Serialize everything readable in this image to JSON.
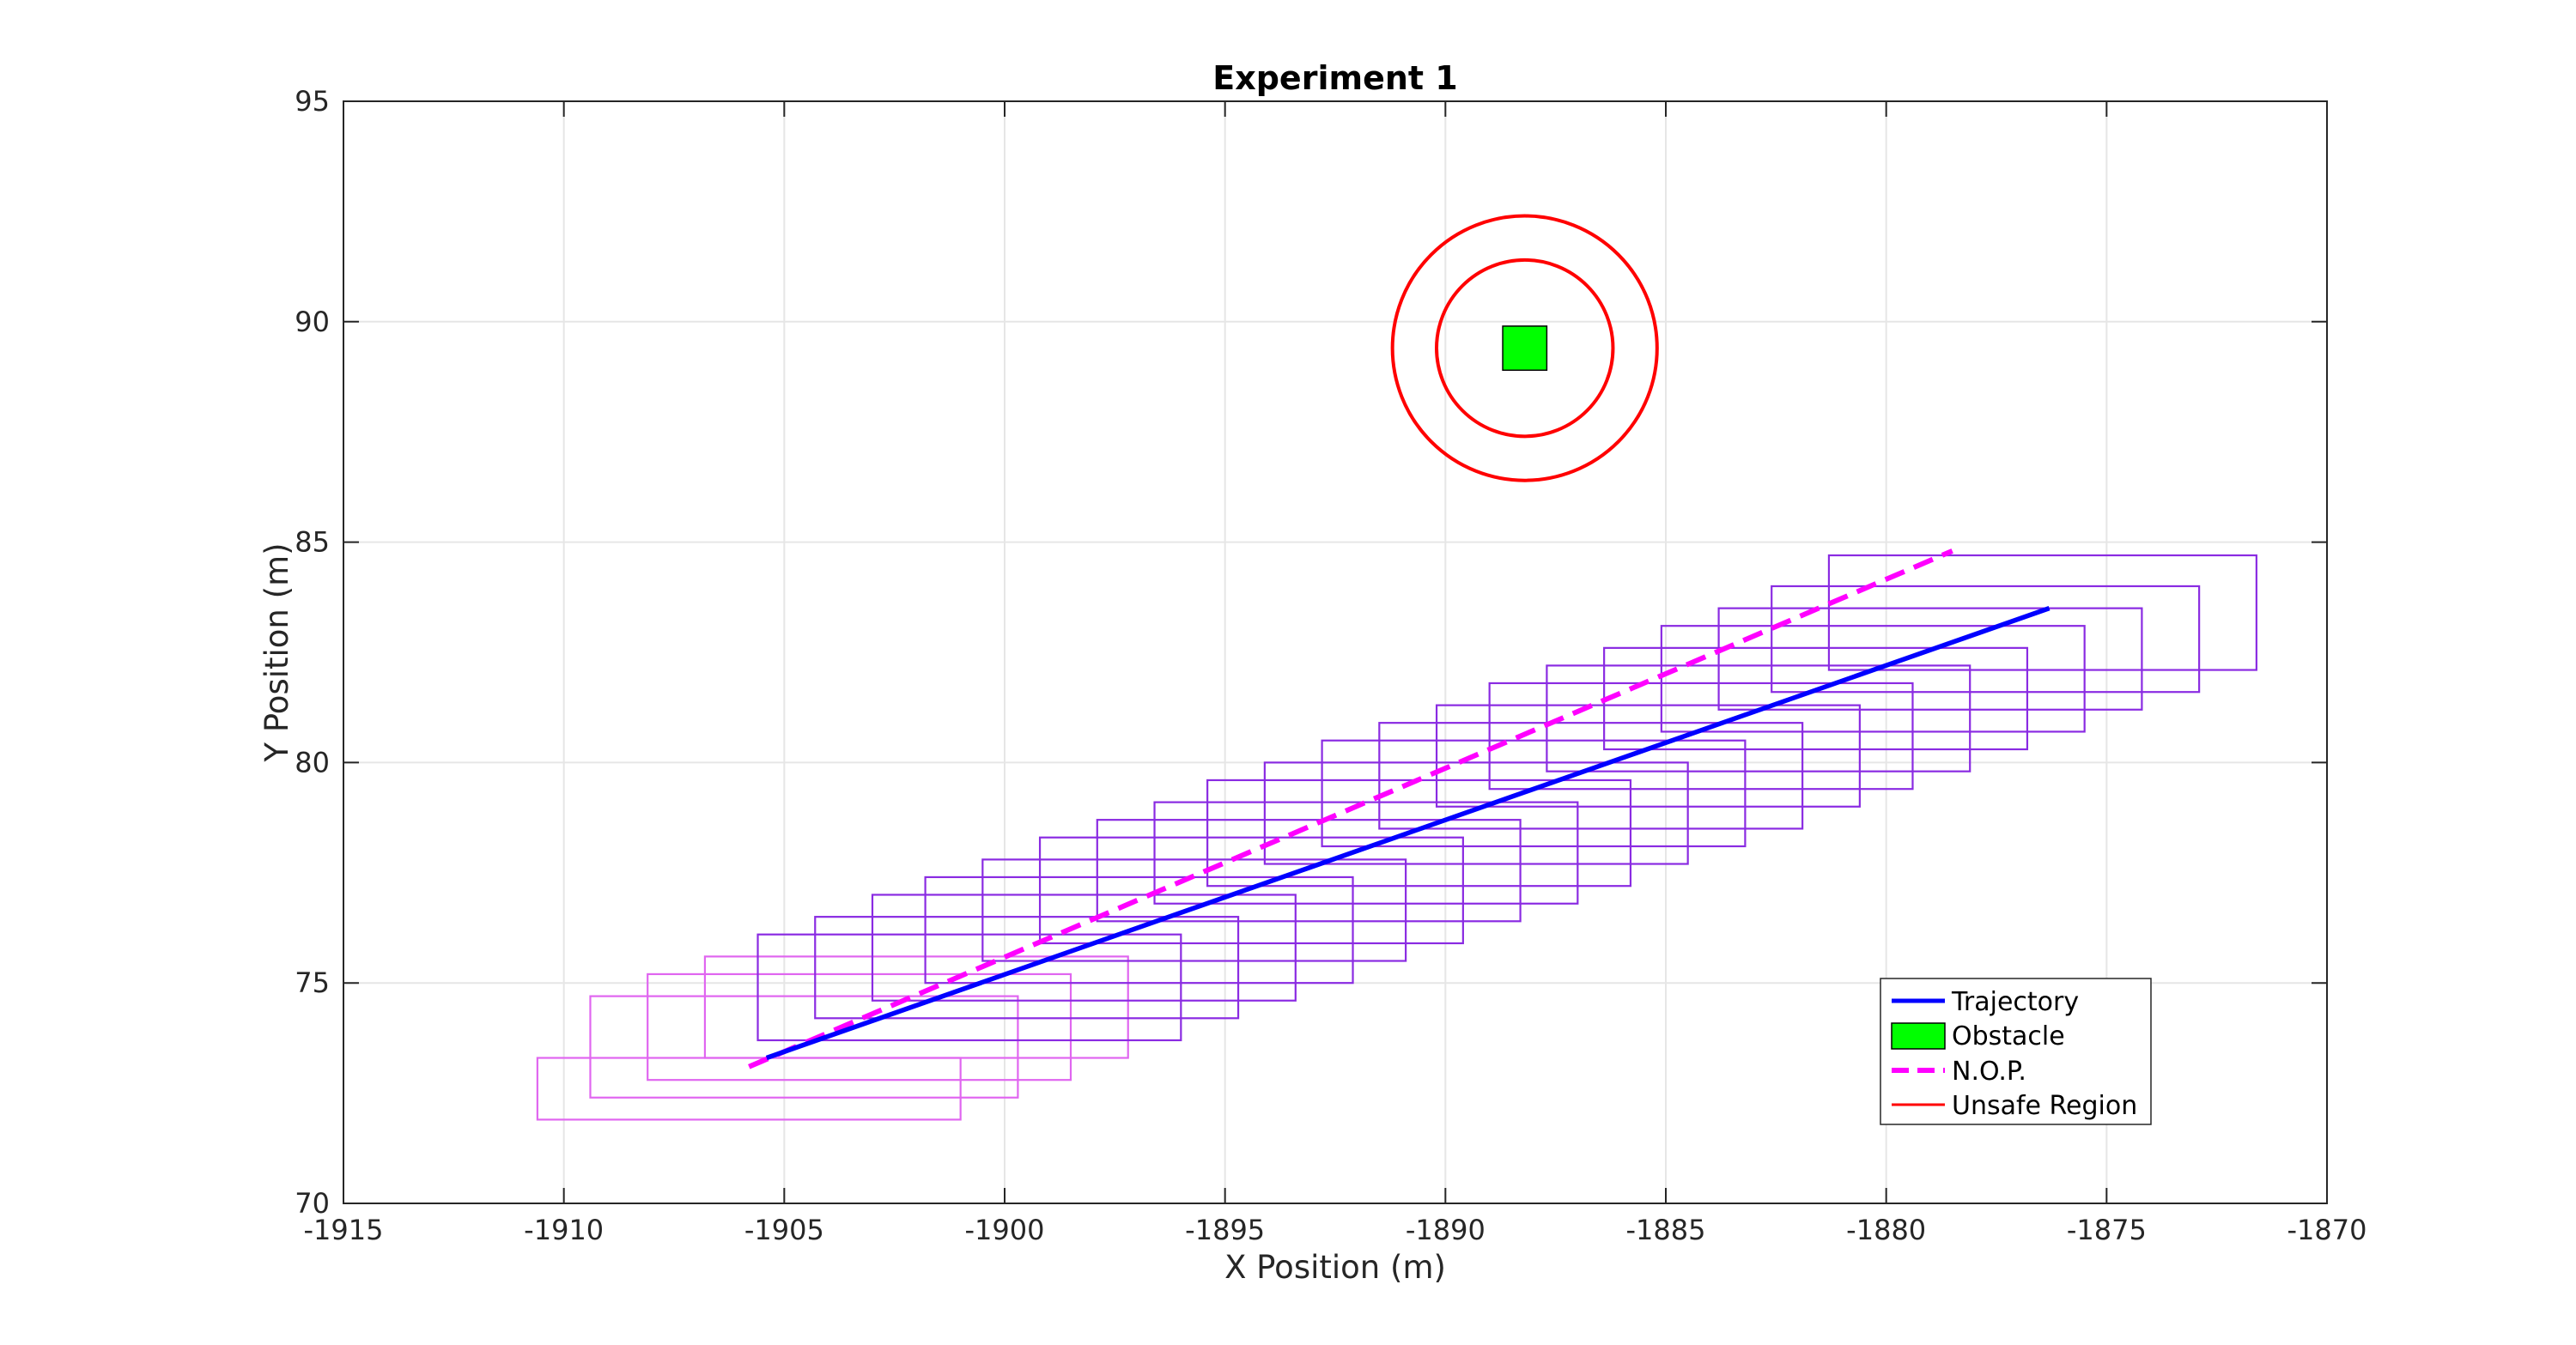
{
  "chart_data": {
    "type": "line",
    "title": "Experiment 1",
    "xlabel": "X Position (m)",
    "ylabel": "Y Position (m)",
    "xlim": [
      -1915,
      -1870
    ],
    "ylim": [
      70,
      95
    ],
    "xticks": [
      -1915,
      -1910,
      -1905,
      -1900,
      -1895,
      -1890,
      -1885,
      -1880,
      -1875,
      -1870
    ],
    "yticks": [
      70,
      75,
      80,
      85,
      90,
      95
    ],
    "grid": true,
    "legend_position": "bottom-right",
    "legend": [
      "Trajectory",
      "Obstacle",
      "N.O.P.",
      "Unsafe Region"
    ],
    "colors": {
      "trajectory": "#0000ff",
      "obstacle": "#00ff00",
      "nop": "#ff00ff",
      "unsafe": "#ff0000",
      "box_purple": "#8a2be2",
      "box_magenta": "#e066f0",
      "grid": "#e6e6e6",
      "axis": "#262626"
    },
    "series": [
      {
        "name": "Trajectory",
        "style": "solid",
        "x": [
          -1905.4,
          -1876.3
        ],
        "y": [
          73.3,
          83.5
        ]
      },
      {
        "name": "N.O.P.",
        "style": "dashed",
        "x": [
          -1905.8,
          -1878.5
        ],
        "y": [
          73.1,
          84.8
        ]
      }
    ],
    "obstacle": {
      "name": "Obstacle",
      "x": [
        -1888.7,
        -1887.7
      ],
      "y": [
        88.9,
        89.9
      ]
    },
    "unsafe_regions": [
      {
        "name": "Unsafe Region",
        "center": [
          -1888.2,
          89.4
        ],
        "radius": 2.0
      },
      {
        "name": "Unsafe Region",
        "center": [
          -1888.2,
          89.4
        ],
        "radius": 3.0
      }
    ],
    "uncertainty_boxes": [
      {
        "x": [
          -1910.6,
          -1901.0
        ],
        "y": [
          71.9,
          73.3
        ],
        "color": "magenta"
      },
      {
        "x": [
          -1909.4,
          -1899.7
        ],
        "y": [
          72.4,
          74.7
        ],
        "color": "magenta"
      },
      {
        "x": [
          -1908.1,
          -1898.5
        ],
        "y": [
          72.8,
          75.2
        ],
        "color": "magenta"
      },
      {
        "x": [
          -1906.8,
          -1897.2
        ],
        "y": [
          73.3,
          75.6
        ],
        "color": "magenta"
      },
      {
        "x": [
          -1905.6,
          -1896.0
        ],
        "y": [
          73.7,
          76.1
        ],
        "color": "purple"
      },
      {
        "x": [
          -1904.3,
          -1894.7
        ],
        "y": [
          74.2,
          76.5
        ],
        "color": "purple"
      },
      {
        "x": [
          -1903.0,
          -1893.4
        ],
        "y": [
          74.6,
          77.0
        ],
        "color": "purple"
      },
      {
        "x": [
          -1901.8,
          -1892.1
        ],
        "y": [
          75.0,
          77.4
        ],
        "color": "purple"
      },
      {
        "x": [
          -1900.5,
          -1890.9
        ],
        "y": [
          75.5,
          77.8
        ],
        "color": "purple"
      },
      {
        "x": [
          -1899.2,
          -1889.6
        ],
        "y": [
          75.9,
          78.3
        ],
        "color": "purple"
      },
      {
        "x": [
          -1897.9,
          -1888.3
        ],
        "y": [
          76.4,
          78.7
        ],
        "color": "purple"
      },
      {
        "x": [
          -1896.6,
          -1887.0
        ],
        "y": [
          76.8,
          79.1
        ],
        "color": "purple"
      },
      {
        "x": [
          -1895.4,
          -1885.8
        ],
        "y": [
          77.2,
          79.6
        ],
        "color": "purple"
      },
      {
        "x": [
          -1894.1,
          -1884.5
        ],
        "y": [
          77.7,
          80.0
        ],
        "color": "purple"
      },
      {
        "x": [
          -1892.8,
          -1883.2
        ],
        "y": [
          78.1,
          80.5
        ],
        "color": "purple"
      },
      {
        "x": [
          -1891.5,
          -1881.9
        ],
        "y": [
          78.5,
          80.9
        ],
        "color": "purple"
      },
      {
        "x": [
          -1890.2,
          -1880.6
        ],
        "y": [
          79.0,
          81.3
        ],
        "color": "purple"
      },
      {
        "x": [
          -1889.0,
          -1879.4
        ],
        "y": [
          79.4,
          81.8
        ],
        "color": "purple"
      },
      {
        "x": [
          -1887.7,
          -1878.1
        ],
        "y": [
          79.8,
          82.2
        ],
        "color": "purple"
      },
      {
        "x": [
          -1886.4,
          -1876.8
        ],
        "y": [
          80.3,
          82.6
        ],
        "color": "purple"
      },
      {
        "x": [
          -1885.1,
          -1875.5
        ],
        "y": [
          80.7,
          83.1
        ],
        "color": "purple"
      },
      {
        "x": [
          -1883.8,
          -1874.2
        ],
        "y": [
          81.2,
          83.5
        ],
        "color": "purple"
      },
      {
        "x": [
          -1882.6,
          -1872.9
        ],
        "y": [
          81.6,
          84.0
        ],
        "color": "purple"
      },
      {
        "x": [
          -1881.3,
          -1871.6
        ],
        "y": [
          82.1,
          84.7
        ],
        "color": "purple"
      }
    ]
  }
}
